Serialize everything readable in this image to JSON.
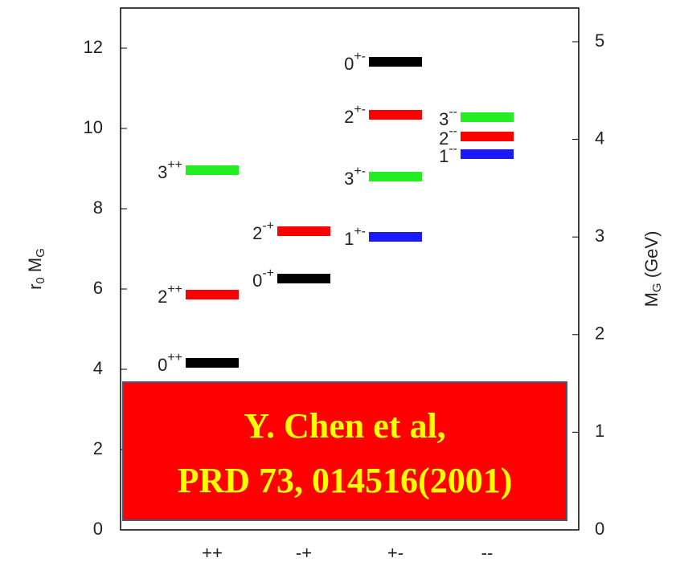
{
  "chart_data": {
    "type": "level",
    "ylabel": [
      "r",
      "0",
      " M",
      "G"
    ],
    "y2label": [
      "M",
      "G",
      " (GeV)"
    ],
    "categories": [
      "++",
      "-+",
      "+-",
      "--"
    ],
    "ylim": [
      0,
      13
    ],
    "yticks": [
      0,
      2,
      4,
      6,
      8,
      10,
      12
    ],
    "y2lim": [
      0,
      5.345
    ],
    "y2ticks": [
      0,
      1,
      2,
      3,
      4,
      5
    ],
    "levels": [
      {
        "category": "++",
        "spin": "0",
        "pc": "++",
        "value": 4.16,
        "color": "#000000"
      },
      {
        "category": "++",
        "spin": "2",
        "pc": "++",
        "value": 5.86,
        "color": "#ff0000"
      },
      {
        "category": "++",
        "spin": "3",
        "pc": "++",
        "value": 8.96,
        "color": "#22ee22"
      },
      {
        "category": "-+",
        "spin": "0",
        "pc": "-+",
        "value": 6.26,
        "color": "#000000"
      },
      {
        "category": "-+",
        "spin": "2",
        "pc": "-+",
        "value": 7.44,
        "color": "#ff0000"
      },
      {
        "category": "+-",
        "spin": "1",
        "pc": "+-",
        "value": 7.3,
        "color": "#1a1aff"
      },
      {
        "category": "+-",
        "spin": "3",
        "pc": "+-",
        "value": 8.8,
        "color": "#22ee22"
      },
      {
        "category": "+-",
        "spin": "2",
        "pc": "+-",
        "value": 10.34,
        "color": "#ff0000"
      },
      {
        "category": "+-",
        "spin": "0",
        "pc": "+-",
        "value": 11.66,
        "color": "#000000"
      },
      {
        "category": "--",
        "spin": "1",
        "pc": "--",
        "value": 9.36,
        "color": "#1a1aff"
      },
      {
        "category": "--",
        "spin": "2",
        "pc": "--",
        "value": 9.8,
        "color": "#ff0000"
      },
      {
        "category": "--",
        "spin": "3",
        "pc": "--",
        "value": 10.28,
        "color": "#22ee22"
      }
    ],
    "annotation": [
      "Y. Chen  et al,",
      "PRD 73, 014516(2001)"
    ]
  }
}
